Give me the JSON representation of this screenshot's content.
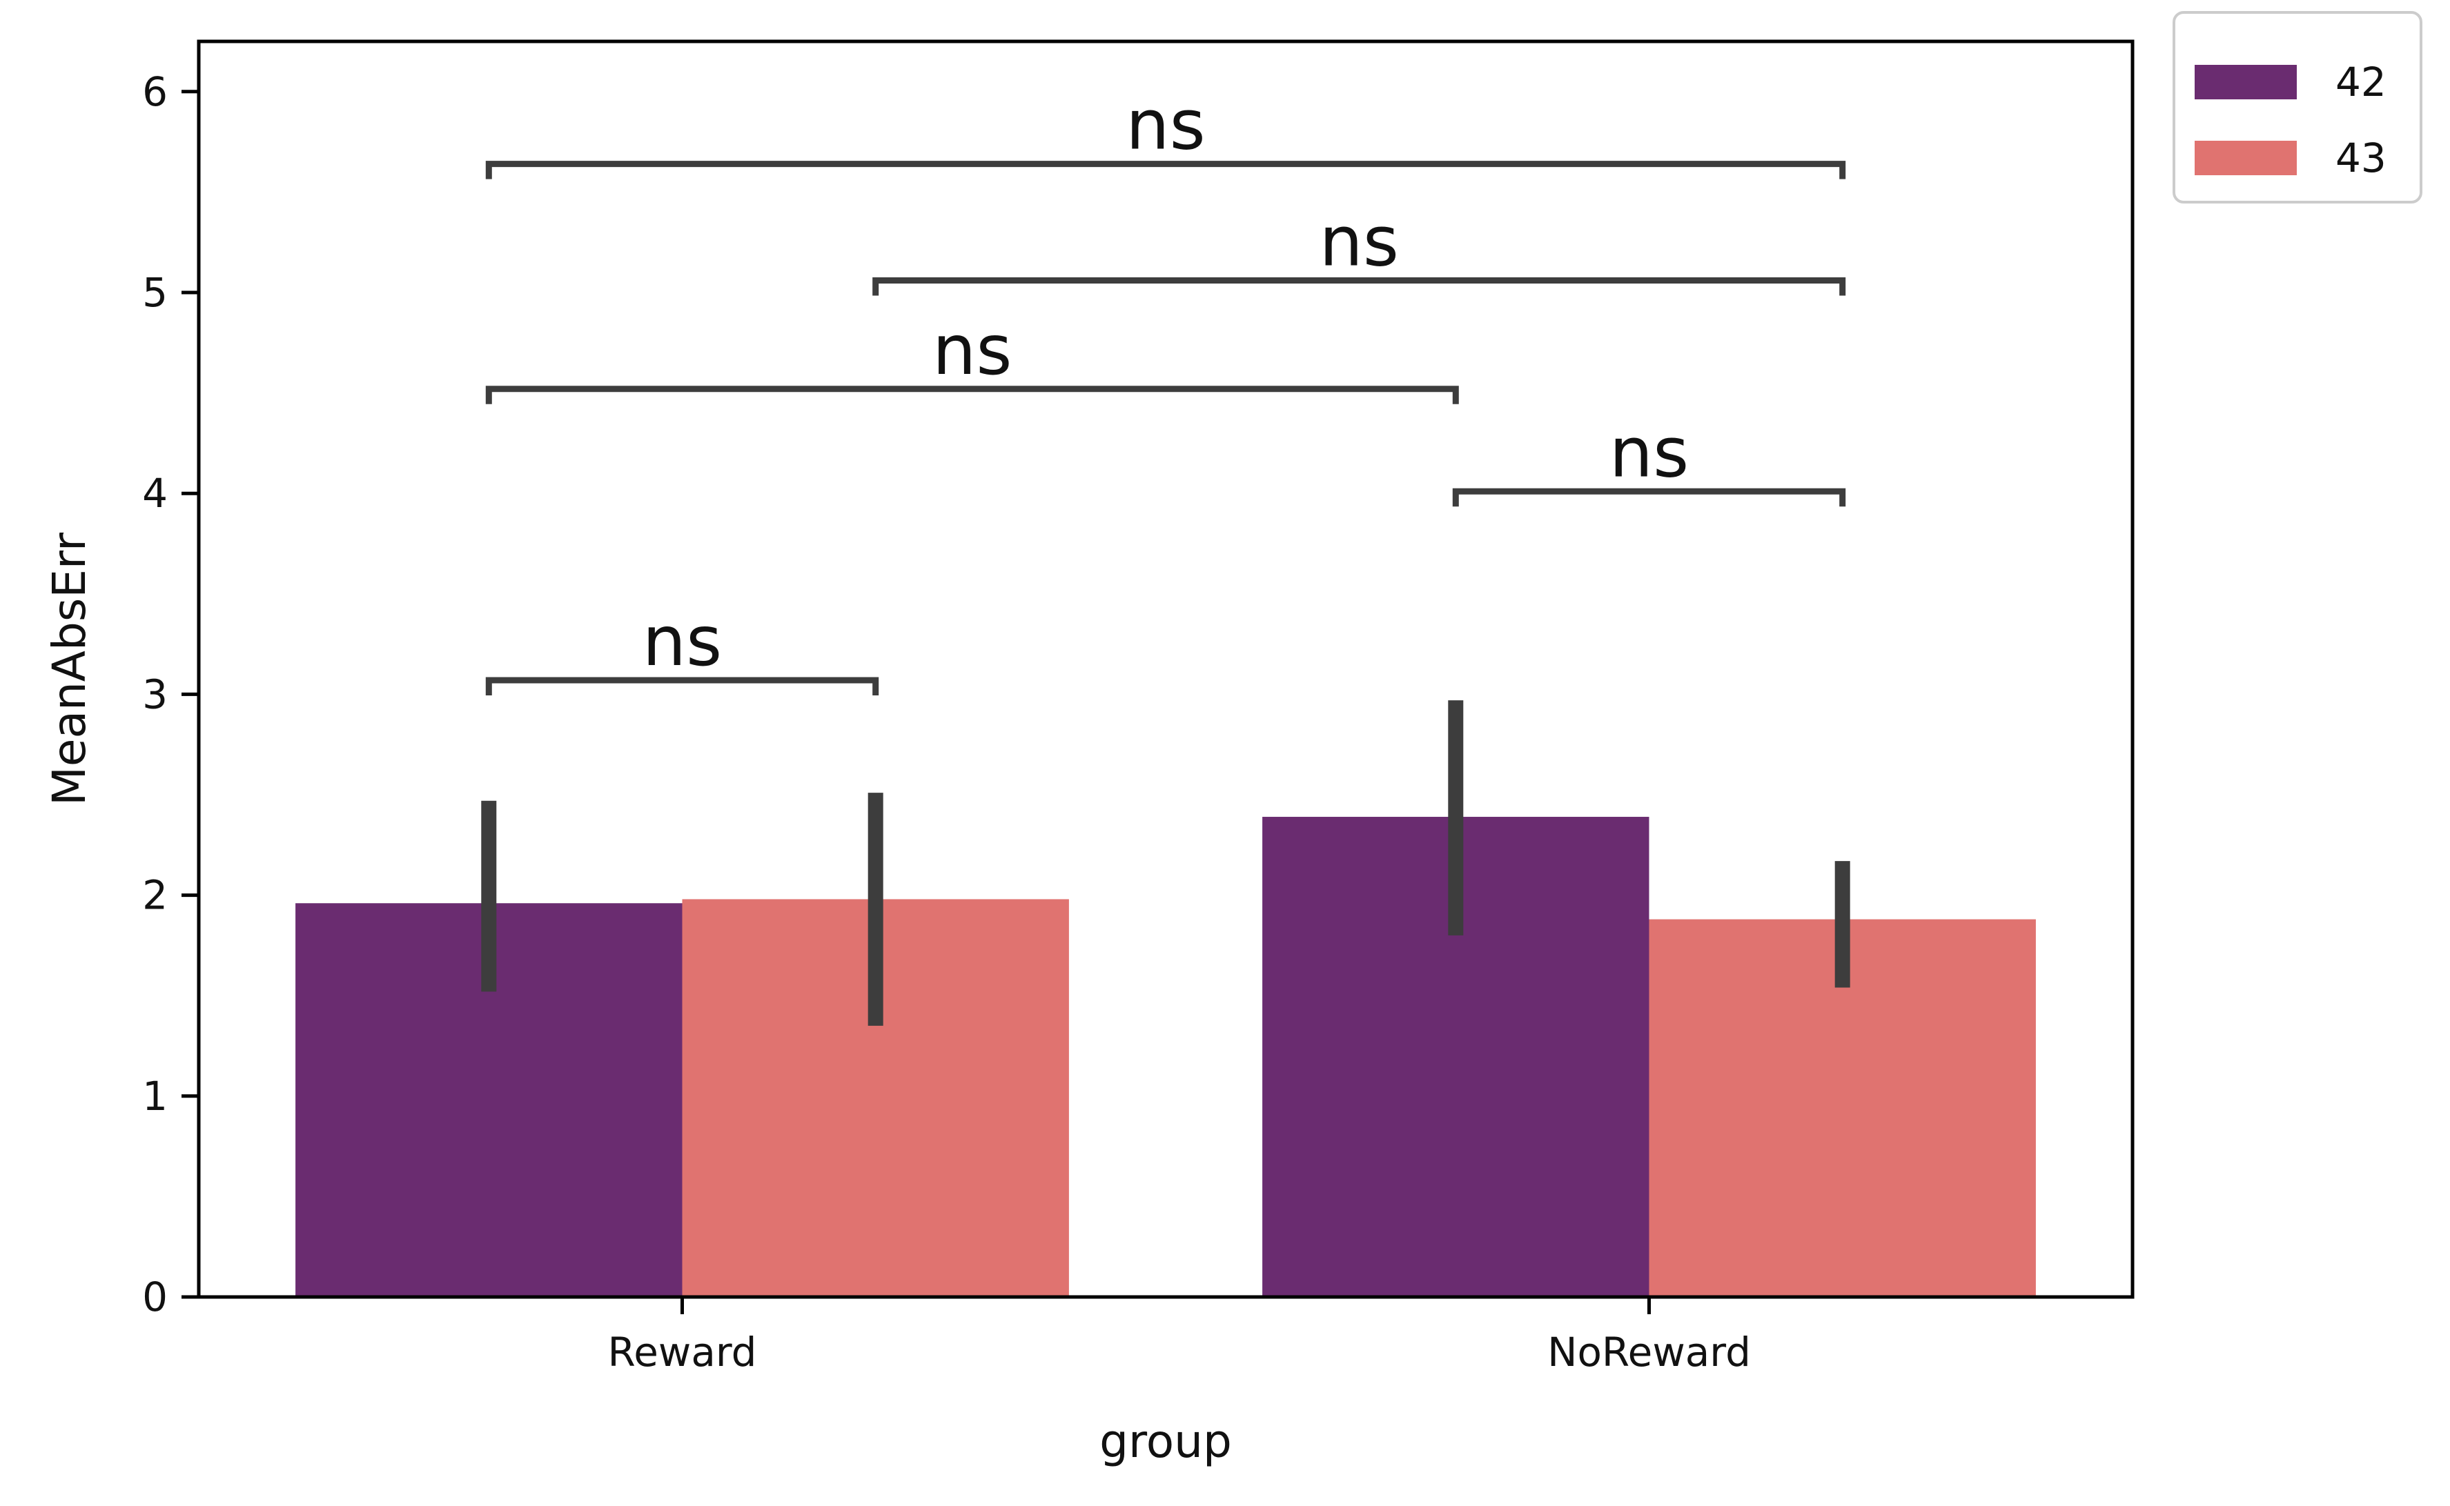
{
  "chart_data": {
    "type": "bar",
    "categories": [
      "Reward",
      "NoReward"
    ],
    "xlabel": "group",
    "ylabel": "MeanAbsErr",
    "ylim": [
      0,
      6.25
    ],
    "yticks": [
      "0",
      "1",
      "2",
      "3",
      "4",
      "5",
      "6"
    ],
    "grid": false,
    "legend_position": "outside top-right",
    "series": [
      {
        "name": "42",
        "color": "#6a2c70",
        "values": [
          1.96,
          2.39
        ],
        "ci_low": [
          1.52,
          1.8
        ],
        "ci_high": [
          2.47,
          2.97
        ]
      },
      {
        "name": "43",
        "color": "#e07370",
        "values": [
          1.98,
          1.88
        ],
        "ci_low": [
          1.35,
          1.54
        ],
        "ci_high": [
          2.51,
          2.17
        ]
      }
    ],
    "annotations": [
      {
        "text": "ns",
        "from": [
          0,
          0
        ],
        "to": [
          0,
          1
        ],
        "y": 3.07
      },
      {
        "text": "ns",
        "from": [
          1,
          0
        ],
        "to": [
          1,
          1
        ],
        "y": 4.01
      },
      {
        "text": "ns",
        "from": [
          0,
          0
        ],
        "to": [
          1,
          0
        ],
        "y": 4.52
      },
      {
        "text": "ns",
        "from": [
          0,
          1
        ],
        "to": [
          1,
          1
        ],
        "y": 5.06
      },
      {
        "text": "ns",
        "from": [
          0,
          0
        ],
        "to": [
          1,
          1
        ],
        "y": 5.64
      }
    ]
  }
}
